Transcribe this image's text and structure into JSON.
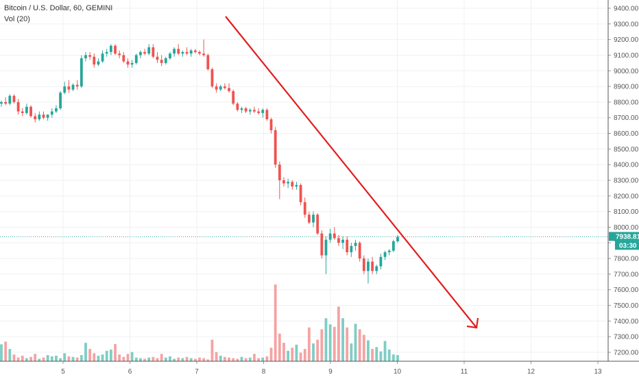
{
  "legend": {
    "title": "Bitcoin / U.S. Dollar, 60, GEMINI",
    "volume": "Vol (20)"
  },
  "price_badge": {
    "price": "7938.81",
    "countdown": "03:30"
  },
  "colors": {
    "up": "#26a69a",
    "down": "#ef5350",
    "up_volume": "#7fcdc4",
    "down_volume": "#f5a3a3",
    "trendline": "#e31b1b",
    "price_line": "#26a69a",
    "grid": "#eef0f3"
  },
  "chart_data": {
    "type": "candlestick",
    "title": "Bitcoin / U.S. Dollar, 60, GEMINI",
    "y_ticks": [
      "9400.00",
      "9300.00",
      "9200.00",
      "9100.00",
      "9000.00",
      "8900.00",
      "8800.00",
      "8700.00",
      "8600.00",
      "8500.00",
      "8400.00",
      "8300.00",
      "8200.00",
      "8100.00",
      "8000.00",
      "7900.00",
      "7800.00",
      "7700.00",
      "7600.00",
      "7500.00",
      "7400.00",
      "7300.00",
      "7200.00"
    ],
    "y_tick_values": [
      9400,
      9300,
      9200,
      9100,
      9000,
      8900,
      8800,
      8700,
      8600,
      8500,
      8400,
      8300,
      8200,
      8100,
      8000,
      7900,
      7800,
      7700,
      7600,
      7500,
      7400,
      7300,
      7200
    ],
    "ylim": [
      7150,
      9450
    ],
    "x_ticks": [
      "5",
      "6",
      "7",
      "8",
      "9",
      "10",
      "11",
      "12",
      "13"
    ],
    "x_tick_values": [
      5,
      6,
      7,
      8,
      9,
      10,
      11,
      12,
      13
    ],
    "xlim": [
      4.05,
      13.1
    ],
    "last_price": 7938.81,
    "ohlc": [
      [
        8790,
        8810,
        8770,
        8800
      ],
      [
        8800,
        8830,
        8780,
        8790
      ],
      [
        8790,
        8850,
        8780,
        8840
      ],
      [
        8840,
        8850,
        8790,
        8800
      ],
      [
        8800,
        8820,
        8720,
        8740
      ],
      [
        8740,
        8760,
        8710,
        8730
      ],
      [
        8730,
        8790,
        8720,
        8770
      ],
      [
        8770,
        8780,
        8700,
        8710
      ],
      [
        8710,
        8730,
        8670,
        8690
      ],
      [
        8690,
        8740,
        8680,
        8720
      ],
      [
        8720,
        8740,
        8690,
        8700
      ],
      [
        8700,
        8720,
        8680,
        8720
      ],
      [
        8720,
        8760,
        8700,
        8740
      ],
      [
        8740,
        8780,
        8730,
        8760
      ],
      [
        8760,
        8870,
        8750,
        8860
      ],
      [
        8860,
        8930,
        8850,
        8900
      ],
      [
        8900,
        8940,
        8860,
        8880
      ],
      [
        8880,
        8920,
        8870,
        8910
      ],
      [
        8910,
        8940,
        8880,
        8900
      ],
      [
        8900,
        9100,
        8890,
        9080
      ],
      [
        9080,
        9120,
        9060,
        9100
      ],
      [
        9100,
        9120,
        9070,
        9090
      ],
      [
        9090,
        9110,
        9020,
        9040
      ],
      [
        9040,
        9080,
        9030,
        9060
      ],
      [
        9060,
        9130,
        9050,
        9110
      ],
      [
        9110,
        9140,
        9090,
        9120
      ],
      [
        9120,
        9170,
        9100,
        9160
      ],
      [
        9160,
        9170,
        9100,
        9110
      ],
      [
        9110,
        9130,
        9080,
        9100
      ],
      [
        9100,
        9120,
        9050,
        9060
      ],
      [
        9060,
        9080,
        9020,
        9040
      ],
      [
        9040,
        9070,
        9020,
        9050
      ],
      [
        9050,
        9110,
        9040,
        9100
      ],
      [
        9100,
        9130,
        9080,
        9120
      ],
      [
        9120,
        9140,
        9100,
        9110
      ],
      [
        9110,
        9170,
        9100,
        9150
      ],
      [
        9150,
        9170,
        9080,
        9090
      ],
      [
        9090,
        9120,
        9050,
        9070
      ],
      [
        9070,
        9100,
        9030,
        9050
      ],
      [
        9050,
        9090,
        9040,
        9080
      ],
      [
        9080,
        9120,
        9070,
        9110
      ],
      [
        9110,
        9150,
        9090,
        9140
      ],
      [
        9140,
        9170,
        9100,
        9110
      ],
      [
        9110,
        9130,
        9090,
        9120
      ],
      [
        9120,
        9150,
        9100,
        9110
      ],
      [
        9110,
        9140,
        9090,
        9130
      ],
      [
        9130,
        9140,
        9110,
        9120
      ],
      [
        9120,
        9130,
        9100,
        9110
      ],
      [
        9110,
        9200,
        9090,
        9100
      ],
      [
        9100,
        9110,
        9000,
        9010
      ],
      [
        9010,
        9020,
        8890,
        8900
      ],
      [
        8900,
        8920,
        8860,
        8880
      ],
      [
        8880,
        8910,
        8870,
        8900
      ],
      [
        8900,
        8920,
        8880,
        8890
      ],
      [
        8890,
        8920,
        8860,
        8870
      ],
      [
        8870,
        8880,
        8780,
        8790
      ],
      [
        8790,
        8800,
        8740,
        8750
      ],
      [
        8750,
        8770,
        8730,
        8760
      ],
      [
        8760,
        8770,
        8730,
        8740
      ],
      [
        8740,
        8760,
        8720,
        8750
      ],
      [
        8750,
        8770,
        8730,
        8740
      ],
      [
        8740,
        8760,
        8720,
        8730
      ],
      [
        8730,
        8760,
        8700,
        8750
      ],
      [
        8750,
        8760,
        8680,
        8690
      ],
      [
        8690,
        8700,
        8600,
        8620
      ],
      [
        8620,
        8640,
        8380,
        8400
      ],
      [
        8400,
        8420,
        8180,
        8300
      ],
      [
        8300,
        8320,
        8260,
        8280
      ],
      [
        8280,
        8310,
        8250,
        8290
      ],
      [
        8290,
        8300,
        8240,
        8260
      ],
      [
        8260,
        8290,
        8240,
        8270
      ],
      [
        8270,
        8280,
        8140,
        8160
      ],
      [
        8160,
        8190,
        8060,
        8080
      ],
      [
        8080,
        8100,
        8020,
        8030
      ],
      [
        8030,
        8100,
        8000,
        8080
      ],
      [
        8080,
        8090,
        7950,
        7960
      ],
      [
        7960,
        7980,
        7800,
        7820
      ],
      [
        7820,
        7940,
        7700,
        7920
      ],
      [
        7920,
        7990,
        7900,
        7960
      ],
      [
        7960,
        8000,
        7920,
        7930
      ],
      [
        7930,
        7950,
        7880,
        7900
      ],
      [
        7900,
        7940,
        7860,
        7920
      ],
      [
        7920,
        7940,
        7820,
        7840
      ],
      [
        7840,
        7900,
        7810,
        7880
      ],
      [
        7880,
        7920,
        7850,
        7900
      ],
      [
        7900,
        7910,
        7780,
        7800
      ],
      [
        7800,
        7820,
        7700,
        7720
      ],
      [
        7720,
        7800,
        7640,
        7780
      ],
      [
        7780,
        7810,
        7700,
        7720
      ],
      [
        7720,
        7760,
        7700,
        7750
      ],
      [
        7750,
        7830,
        7730,
        7810
      ],
      [
        7810,
        7850,
        7790,
        7840
      ],
      [
        7840,
        7860,
        7820,
        7850
      ],
      [
        7850,
        7920,
        7840,
        7910
      ],
      [
        7910,
        7950,
        7900,
        7938.81
      ]
    ],
    "volume": [
      55,
      64,
      40,
      22,
      12,
      18,
      10,
      14,
      24,
      8,
      12,
      20,
      16,
      18,
      10,
      26,
      16,
      14,
      12,
      20,
      60,
      40,
      26,
      18,
      22,
      34,
      38,
      56,
      22,
      14,
      24,
      30,
      12,
      10,
      8,
      12,
      14,
      10,
      24,
      12,
      16,
      8,
      12,
      10,
      14,
      10,
      8,
      12,
      10,
      6,
      70,
      30,
      18,
      14,
      12,
      10,
      8,
      14,
      10,
      12,
      24,
      10,
      12,
      16,
      44,
      250,
      90,
      60,
      34,
      44,
      54,
      28,
      40,
      110,
      58,
      70,
      104,
      140,
      120,
      112,
      178,
      140,
      110,
      58,
      122,
      104,
      86,
      68,
      40,
      46,
      32,
      66,
      38,
      22,
      20
    ]
  }
}
